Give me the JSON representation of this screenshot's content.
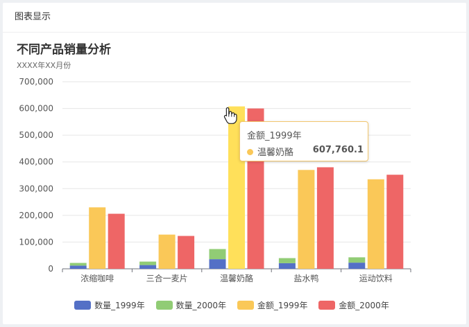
{
  "header": {
    "title": "图表显示"
  },
  "chart_data": {
    "type": "bar",
    "title": "不同产品销量分析",
    "subtitle": "XXXX年XX月份",
    "categories": [
      "浓缩咖啡",
      "三合一麦片",
      "温馨奶酪",
      "盐水鸭",
      "运动饮料"
    ],
    "stacked_groups": [
      "数量",
      "金额_1999年",
      "金额_2000年"
    ],
    "series": [
      {
        "name": "数量_1999年",
        "stack": "数量",
        "values": [
          12000,
          14000,
          36000,
          21000,
          23000
        ],
        "color": "#5470c6"
      },
      {
        "name": "数量_2000年",
        "stack": "数量",
        "values": [
          10000,
          13000,
          38000,
          19000,
          20000
        ],
        "color": "#91cc75"
      },
      {
        "name": "金额_1999年",
        "stack": "金额_1999年",
        "values": [
          230000,
          128000,
          607760.1,
          370000,
          335000
        ],
        "color": "#fac858"
      },
      {
        "name": "金额_2000年",
        "stack": "金额_2000年",
        "values": [
          206000,
          123000,
          600000,
          380000,
          352000
        ],
        "color": "#ee6666"
      }
    ],
    "ylim": [
      0,
      700000
    ],
    "yticks": [
      "0",
      "100,000",
      "200,000",
      "300,000",
      "400,000",
      "500,000",
      "600,000",
      "700,000"
    ],
    "ytick_values": [
      0,
      100000,
      200000,
      300000,
      400000,
      500000,
      600000,
      700000
    ],
    "grid": true,
    "legend_position": "bottom",
    "tooltip": {
      "title": "金额_1999年",
      "label": "温馨奶酪",
      "value": "607,760.1",
      "color": "#fac858"
    },
    "highlighted": {
      "series": "金额_1999年",
      "category": "温馨奶酪",
      "color": "#ffe05a"
    }
  }
}
